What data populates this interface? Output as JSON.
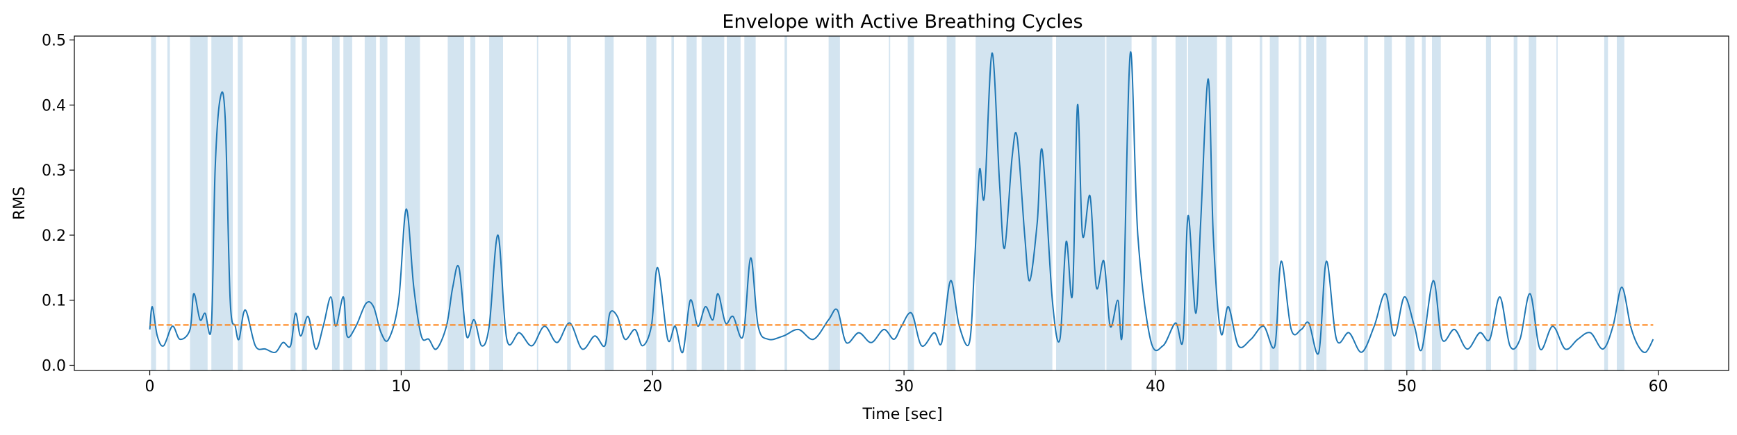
{
  "chart_data": {
    "type": "line",
    "title": "Envelope with Active Breathing Cycles",
    "xlabel": "Time [sec]",
    "ylabel": "RMS",
    "xlim": [
      -3.0,
      62.8
    ],
    "ylim": [
      -0.008,
      0.506
    ],
    "xticks": [
      0,
      10,
      20,
      30,
      40,
      50,
      60
    ],
    "yticks": [
      0.0,
      0.1,
      0.2,
      0.3,
      0.4,
      0.5
    ],
    "xtick_labels": [
      "0",
      "10",
      "20",
      "30",
      "40",
      "50",
      "60"
    ],
    "ytick_labels": [
      "0.0",
      "0.1",
      "0.2",
      "0.3",
      "0.4",
      "0.5"
    ],
    "grid": false,
    "legend": "none",
    "colors": {
      "envelope": "#1f77b4",
      "threshold": "#ff7f0e",
      "active_span": "#aecde4"
    },
    "series": [
      {
        "kind": "envelope",
        "x": [
          0.0,
          0.1,
          0.3,
          0.55,
          0.9,
          1.2,
          1.6,
          1.75,
          2.0,
          2.2,
          2.45,
          2.6,
          2.8,
          3.0,
          3.2,
          3.4,
          3.55,
          3.8,
          4.2,
          4.6,
          5.0,
          5.3,
          5.6,
          5.8,
          6.0,
          6.3,
          6.6,
          6.9,
          7.2,
          7.4,
          7.7,
          7.85,
          8.2,
          8.6,
          8.9,
          9.2,
          9.5,
          9.9,
          10.2,
          10.5,
          10.8,
          11.1,
          11.4,
          11.8,
          12.05,
          12.3,
          12.6,
          12.9,
          13.2,
          13.5,
          13.85,
          14.2,
          14.7,
          15.2,
          15.7,
          16.2,
          16.7,
          17.2,
          17.7,
          18.1,
          18.3,
          18.6,
          18.9,
          19.3,
          19.6,
          19.95,
          20.2,
          20.6,
          20.9,
          21.2,
          21.5,
          21.8,
          22.1,
          22.4,
          22.6,
          22.9,
          23.2,
          23.6,
          23.9,
          24.2,
          24.6,
          25.2,
          25.8,
          26.4,
          27.0,
          27.35,
          27.7,
          28.2,
          28.7,
          29.2,
          29.6,
          29.9,
          30.3,
          30.7,
          31.2,
          31.5,
          31.85,
          32.2,
          32.6,
          32.8,
          33.0,
          33.2,
          33.5,
          33.8,
          34.0,
          34.3,
          34.5,
          34.8,
          35.0,
          35.3,
          35.5,
          35.9,
          36.2,
          36.45,
          36.7,
          36.9,
          37.1,
          37.4,
          37.65,
          37.95,
          38.2,
          38.5,
          38.7,
          39.0,
          39.3,
          39.8,
          40.3,
          40.8,
          41.1,
          41.3,
          41.6,
          41.8,
          42.1,
          42.3,
          42.6,
          42.9,
          43.3,
          43.8,
          44.3,
          44.75,
          45.0,
          45.4,
          45.8,
          46.1,
          46.5,
          46.8,
          47.2,
          47.7,
          48.2,
          48.7,
          49.15,
          49.5,
          49.9,
          50.3,
          50.6,
          51.05,
          51.4,
          51.9,
          52.4,
          52.9,
          53.3,
          53.7,
          54.1,
          54.5,
          54.9,
          55.3,
          55.8,
          56.3,
          56.8,
          57.3,
          57.8,
          58.2,
          58.55,
          58.9,
          59.2,
          59.5,
          59.8
        ],
        "y": [
          0.055,
          0.09,
          0.045,
          0.03,
          0.06,
          0.04,
          0.055,
          0.11,
          0.07,
          0.08,
          0.06,
          0.3,
          0.41,
          0.38,
          0.1,
          0.06,
          0.04,
          0.085,
          0.03,
          0.025,
          0.02,
          0.035,
          0.03,
          0.08,
          0.045,
          0.075,
          0.025,
          0.06,
          0.105,
          0.06,
          0.105,
          0.045,
          0.06,
          0.095,
          0.09,
          0.05,
          0.04,
          0.1,
          0.24,
          0.12,
          0.045,
          0.04,
          0.025,
          0.06,
          0.12,
          0.15,
          0.045,
          0.07,
          0.03,
          0.06,
          0.2,
          0.04,
          0.05,
          0.03,
          0.06,
          0.035,
          0.065,
          0.025,
          0.045,
          0.03,
          0.08,
          0.075,
          0.04,
          0.055,
          0.03,
          0.06,
          0.15,
          0.04,
          0.06,
          0.02,
          0.1,
          0.06,
          0.09,
          0.07,
          0.11,
          0.065,
          0.075,
          0.045,
          0.165,
          0.06,
          0.04,
          0.045,
          0.055,
          0.04,
          0.07,
          0.085,
          0.035,
          0.05,
          0.035,
          0.055,
          0.04,
          0.06,
          0.08,
          0.03,
          0.05,
          0.035,
          0.13,
          0.06,
          0.035,
          0.15,
          0.3,
          0.26,
          0.48,
          0.28,
          0.18,
          0.32,
          0.35,
          0.2,
          0.13,
          0.22,
          0.33,
          0.1,
          0.04,
          0.19,
          0.11,
          0.4,
          0.2,
          0.26,
          0.12,
          0.16,
          0.06,
          0.1,
          0.06,
          0.48,
          0.2,
          0.04,
          0.03,
          0.065,
          0.04,
          0.23,
          0.08,
          0.22,
          0.44,
          0.2,
          0.05,
          0.09,
          0.03,
          0.04,
          0.06,
          0.03,
          0.16,
          0.055,
          0.055,
          0.065,
          0.02,
          0.16,
          0.04,
          0.05,
          0.02,
          0.06,
          0.11,
          0.045,
          0.105,
          0.06,
          0.025,
          0.13,
          0.04,
          0.055,
          0.025,
          0.05,
          0.04,
          0.105,
          0.03,
          0.04,
          0.11,
          0.025,
          0.06,
          0.025,
          0.04,
          0.05,
          0.025,
          0.06,
          0.12,
          0.06,
          0.03,
          0.02,
          0.04
        ]
      },
      {
        "kind": "threshold",
        "x": [
          0.0,
          59.8
        ],
        "y": [
          0.062,
          0.062
        ]
      }
    ],
    "active_spans": [
      [
        0.05,
        0.25
      ],
      [
        0.7,
        0.8
      ],
      [
        1.6,
        2.3
      ],
      [
        2.45,
        3.3
      ],
      [
        3.5,
        3.7
      ],
      [
        5.6,
        5.8
      ],
      [
        6.05,
        6.25
      ],
      [
        7.25,
        7.55
      ],
      [
        7.7,
        8.05
      ],
      [
        8.55,
        9.0
      ],
      [
        9.15,
        9.45
      ],
      [
        10.15,
        10.75
      ],
      [
        11.85,
        12.5
      ],
      [
        12.75,
        12.95
      ],
      [
        13.5,
        14.05
      ],
      [
        15.4,
        15.45
      ],
      [
        16.6,
        16.75
      ],
      [
        18.1,
        18.45
      ],
      [
        19.75,
        20.15
      ],
      [
        20.75,
        20.85
      ],
      [
        21.35,
        21.75
      ],
      [
        21.95,
        22.85
      ],
      [
        22.95,
        23.5
      ],
      [
        23.65,
        24.1
      ],
      [
        25.25,
        25.35
      ],
      [
        27.0,
        27.45
      ],
      [
        29.4,
        29.45
      ],
      [
        30.15,
        30.4
      ],
      [
        31.7,
        32.05
      ],
      [
        32.85,
        35.9
      ],
      [
        36.05,
        38.0
      ],
      [
        38.05,
        39.05
      ],
      [
        39.85,
        40.05
      ],
      [
        40.8,
        41.25
      ],
      [
        41.3,
        42.45
      ],
      [
        42.8,
        43.05
      ],
      [
        44.15,
        44.25
      ],
      [
        44.55,
        44.9
      ],
      [
        45.7,
        45.8
      ],
      [
        46.0,
        46.3
      ],
      [
        46.4,
        46.8
      ],
      [
        48.3,
        48.45
      ],
      [
        49.1,
        49.4
      ],
      [
        49.95,
        50.3
      ],
      [
        50.6,
        50.75
      ],
      [
        51.0,
        51.35
      ],
      [
        53.15,
        53.35
      ],
      [
        54.25,
        54.4
      ],
      [
        54.85,
        55.15
      ],
      [
        55.95,
        56.0
      ],
      [
        57.85,
        58.0
      ],
      [
        58.35,
        58.65
      ]
    ]
  }
}
